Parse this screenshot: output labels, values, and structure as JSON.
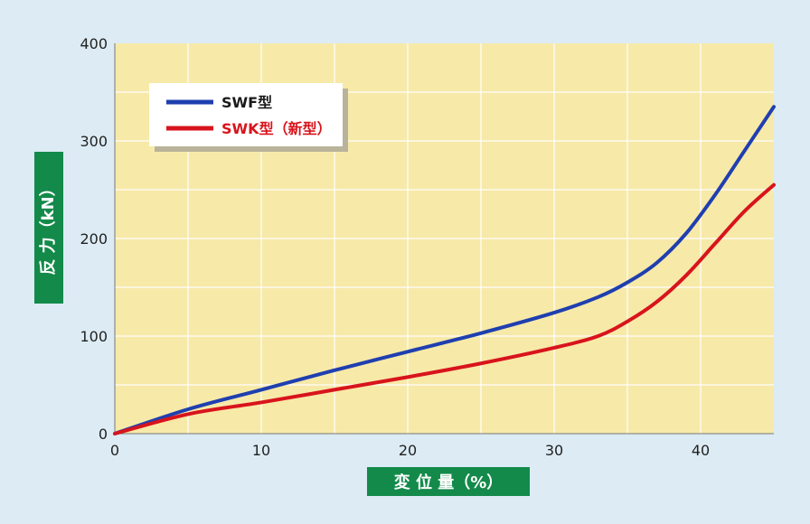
{
  "chart_data": {
    "type": "line",
    "title": "",
    "xlabel": "変 位 量（%）",
    "ylabel": "反 力（kN）",
    "xlim": [
      0,
      45
    ],
    "ylim": [
      0,
      400
    ],
    "x_ticks": [
      0,
      10,
      20,
      30,
      40
    ],
    "y_ticks": [
      0,
      100,
      200,
      300,
      400
    ],
    "x_tick_labels": [
      "0",
      "10",
      "20",
      "30",
      "40"
    ],
    "y_tick_labels": [
      "0",
      "100",
      "200",
      "300",
      "400"
    ],
    "grid": true,
    "legend_position": "top-left",
    "colors": {
      "plot_bg": "#f7e9a8",
      "grid": "#ffffff",
      "label_box": "#138a4a",
      "swf": "#1f3fb0",
      "swk": "#d8141c"
    },
    "series": [
      {
        "name": "SWF型",
        "color": "#1f3fb0",
        "x": [
          0,
          5,
          10,
          15,
          20,
          25,
          30,
          33,
          35,
          37,
          39,
          41,
          43,
          45
        ],
        "y": [
          0,
          25,
          45,
          65,
          84,
          103,
          124,
          140,
          155,
          175,
          205,
          245,
          290,
          335
        ]
      },
      {
        "name": "SWK型（新型）",
        "color": "#d8141c",
        "x": [
          0,
          5,
          10,
          15,
          20,
          25,
          30,
          33,
          35,
          37,
          39,
          41,
          43,
          45
        ],
        "y": [
          0,
          20,
          32,
          45,
          58,
          72,
          88,
          100,
          115,
          135,
          162,
          195,
          228,
          255
        ]
      }
    ]
  }
}
